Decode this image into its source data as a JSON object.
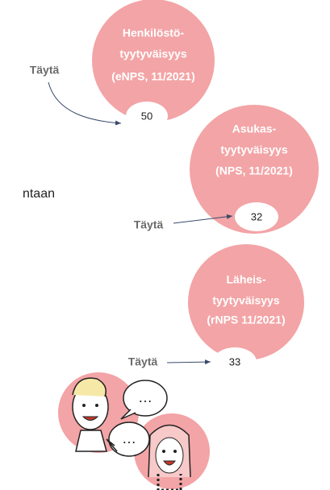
{
  "side_text": "ntaan",
  "circles": [
    {
      "lines": [
        "Henkilöstö-",
        "tyytyväisyys",
        "(eNPS, 11/2021)"
      ],
      "fill_label": "Täytä",
      "value": "50"
    },
    {
      "lines": [
        "Asukas-",
        "tyytyväisyys",
        "(NPS, 11/2021)"
      ],
      "fill_label": "Täytä",
      "value": "32"
    },
    {
      "lines": [
        "Läheis-",
        "tyytyväisyys",
        "(rNPS 11/2021)"
      ],
      "fill_label": "Täytä",
      "value": "33"
    }
  ],
  "illustration": {
    "bubbles": [
      "…",
      "…"
    ]
  }
}
